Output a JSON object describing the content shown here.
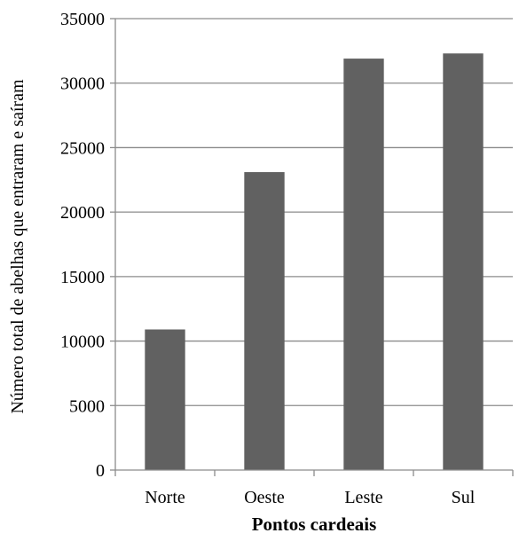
{
  "chart_data": {
    "type": "bar",
    "title": "",
    "xlabel": "Pontos cardeais",
    "ylabel": "Número total de abelhas que entraram e saíram",
    "categories": [
      "Norte",
      "Oeste",
      "Leste",
      "Sul"
    ],
    "values": [
      10900,
      23100,
      31900,
      32300
    ],
    "ylim": [
      0,
      35000
    ],
    "yticks": [
      0,
      5000,
      10000,
      15000,
      20000,
      25000,
      30000,
      35000
    ],
    "grid": true,
    "legend": "none",
    "colors": {
      "bar": "#616161",
      "grid": "#8c8c8c",
      "axis": "#8c8c8c",
      "text": "#000000"
    }
  }
}
